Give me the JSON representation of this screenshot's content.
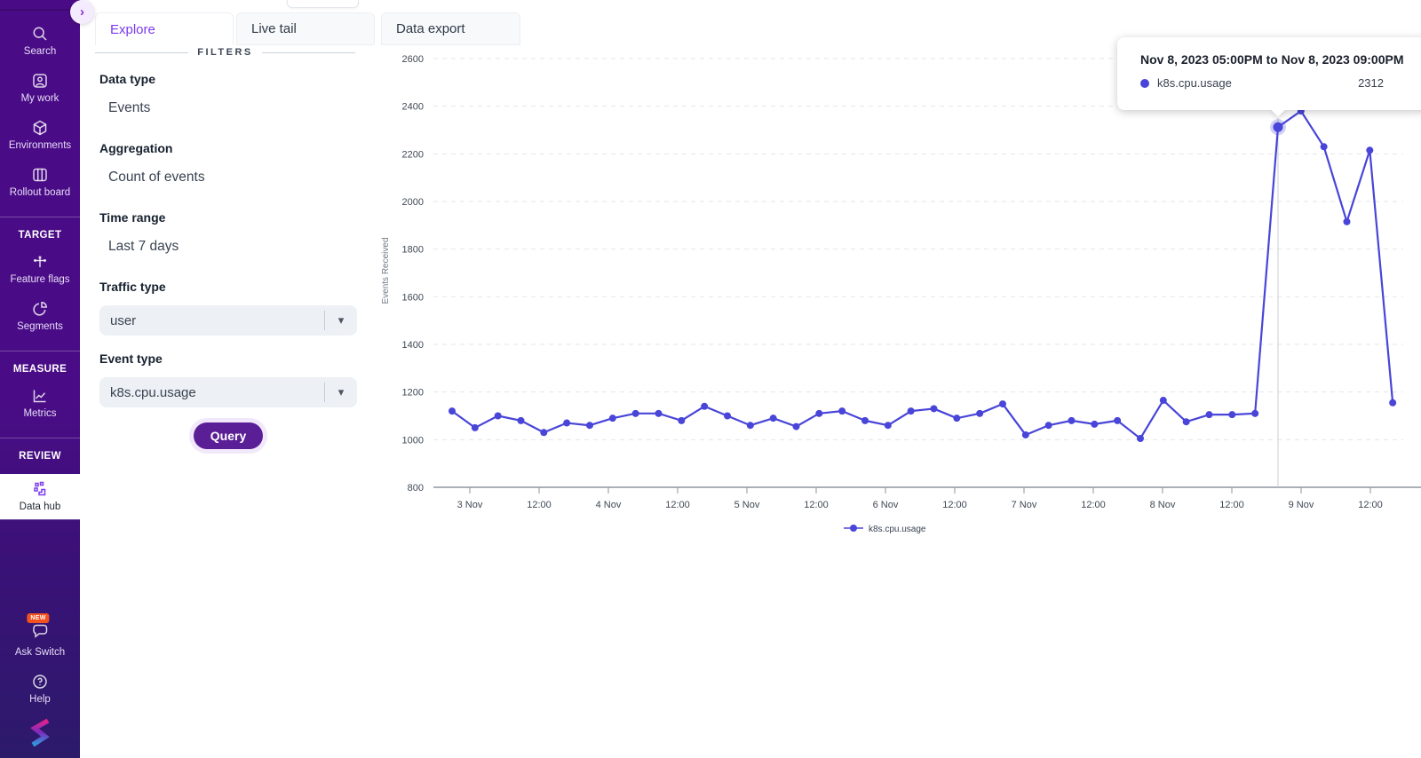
{
  "sidebar": {
    "expand_button": "›",
    "groups": [
      {
        "items": [
          {
            "label": "Search"
          },
          {
            "label": "My work"
          },
          {
            "label": "Environments"
          },
          {
            "label": "Rollout board"
          }
        ]
      },
      {
        "header": "TARGET",
        "items": [
          {
            "label": "Feature flags"
          },
          {
            "label": "Segments"
          }
        ]
      },
      {
        "header": "MEASURE",
        "items": [
          {
            "label": "Metrics"
          }
        ]
      },
      {
        "header": "REVIEW",
        "items": [
          {
            "label": "Data hub",
            "active": true
          }
        ]
      }
    ],
    "footer": {
      "ask_switch": {
        "label": "Ask Switch",
        "badge": "NEW"
      },
      "help": {
        "label": "Help"
      }
    }
  },
  "tabs": [
    {
      "label": "Explore",
      "active": true
    },
    {
      "label": "Live tail",
      "active": false
    },
    {
      "label": "Data export",
      "active": false
    }
  ],
  "filters": {
    "divider_label": "FILTERS",
    "fields": [
      {
        "label": "Data type",
        "value": "Events",
        "type": "static"
      },
      {
        "label": "Aggregation",
        "value": "Count of events",
        "type": "static"
      },
      {
        "label": "Time range",
        "value": "Last 7 days",
        "type": "static"
      },
      {
        "label": "Traffic type",
        "value": "user",
        "type": "select"
      },
      {
        "label": "Event type",
        "value": "k8s.cpu.usage",
        "type": "select"
      }
    ],
    "query_button": "Query"
  },
  "tooltip": {
    "title": "Nov 8, 2023 05:00PM to Nov 8, 2023 09:00PM",
    "series": "k8s.cpu.usage",
    "value": "2312"
  },
  "chart_data": {
    "type": "line",
    "ylabel": "Events Received",
    "x_start": "Nov 2, 2023 05:00PM",
    "x_interval_hours": 4,
    "x_tick_labels": [
      "3 Nov",
      "12:00",
      "4 Nov",
      "12:00",
      "5 Nov",
      "12:00",
      "6 Nov",
      "12:00",
      "7 Nov",
      "12:00",
      "8 Nov",
      "12:00",
      "9 Nov",
      "12:00"
    ],
    "y_ticks": [
      800,
      1000,
      1200,
      1400,
      1600,
      1800,
      2000,
      2200,
      2400,
      2600
    ],
    "ylim": [
      800,
      2600
    ],
    "grid": "dashed-horizontal",
    "legend_position": "bottom-center",
    "highlight_index": 36,
    "series": [
      {
        "name": "k8s.cpu.usage",
        "color": "#4845d8",
        "values": [
          1120,
          1050,
          1100,
          1080,
          1030,
          1070,
          1060,
          1090,
          1110,
          1110,
          1080,
          1140,
          1100,
          1060,
          1090,
          1055,
          1110,
          1120,
          1080,
          1060,
          1120,
          1130,
          1090,
          1110,
          1150,
          1020,
          1060,
          1080,
          1065,
          1080,
          1005,
          1165,
          1075,
          1105,
          1105,
          1110,
          2312,
          2380,
          2230,
          1915,
          2215,
          1155
        ]
      }
    ]
  },
  "colors": {
    "sidebar_purple": "#4a0c86",
    "sidebar_bottom": "#2c1a6b",
    "accent_purple": "#7c3aed",
    "query_button": "#5a1e96",
    "line_series": "#4845d8",
    "new_badge": "#f4511e"
  }
}
